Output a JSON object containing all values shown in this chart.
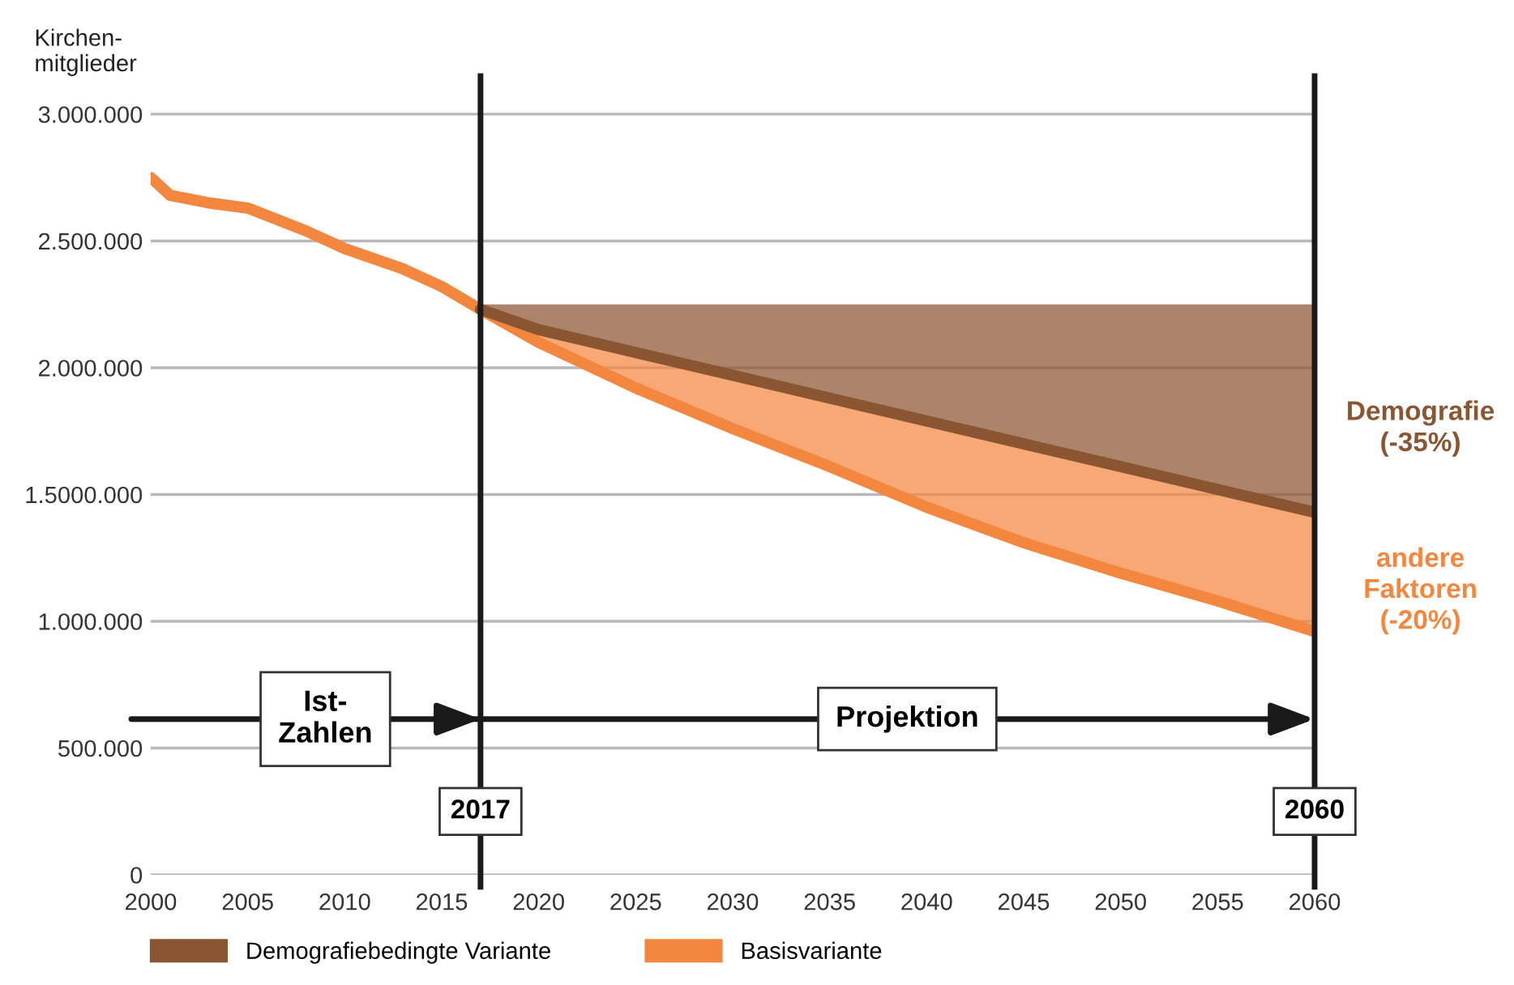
{
  "chart_data": {
    "type": "line",
    "ylabel": "Kirchen-\nmitglieder",
    "series": [
      {
        "name": "Demografiebedingte Variante",
        "color": "#8a5531",
        "x": [
          2017,
          2020,
          2025,
          2030,
          2035,
          2040,
          2045,
          2050,
          2055,
          2060
        ],
        "values": [
          2230000,
          2150000,
          2060000,
          1970000,
          1880000,
          1790000,
          1700000,
          1610000,
          1520000,
          1430000
        ],
        "lower": [
          2230000,
          2150000,
          2060000,
          1970000,
          1880000,
          1790000,
          1700000,
          1610000,
          1520000,
          1430000
        ],
        "upper": [
          2250000,
          2250000,
          2250000,
          2250000,
          2250000,
          2250000,
          2250000,
          2250000,
          2250000,
          2250000
        ]
      },
      {
        "name": "Basisvariante",
        "color": "#f4873f",
        "x": [
          2000,
          2001,
          2003,
          2005,
          2008,
          2010,
          2013,
          2015,
          2017,
          2020,
          2025,
          2030,
          2035,
          2040,
          2045,
          2050,
          2055,
          2060
        ],
        "values": [
          2750000,
          2680000,
          2650000,
          2630000,
          2540000,
          2470000,
          2390000,
          2320000,
          2230000,
          2100000,
          1920000,
          1760000,
          1610000,
          1450000,
          1310000,
          1190000,
          1080000,
          960000
        ],
        "lower": [
          null,
          null,
          null,
          null,
          null,
          null,
          null,
          null,
          2230000,
          2100000,
          1920000,
          1760000,
          1610000,
          1450000,
          1310000,
          1190000,
          1080000,
          960000
        ],
        "upper": [
          null,
          null,
          null,
          null,
          null,
          null,
          null,
          null,
          2230000,
          2150000,
          2060000,
          1970000,
          1880000,
          1790000,
          1700000,
          1610000,
          1520000,
          1430000
        ]
      }
    ],
    "xlim": [
      2000,
      2060
    ],
    "xticks": [
      2000,
      2005,
      2010,
      2015,
      2020,
      2025,
      2030,
      2035,
      2040,
      2045,
      2050,
      2055,
      2060
    ],
    "ylim": [
      0,
      3150000
    ],
    "yticks": [
      {
        "value": 0,
        "label": "0"
      },
      {
        "value": 500000,
        "label": "500.000"
      },
      {
        "value": 1000000,
        "label": "1.000.000"
      },
      {
        "value": 1500000,
        "label": "1.5000.000"
      },
      {
        "value": 2000000,
        "label": "2.000.000"
      },
      {
        "value": 2500000,
        "label": "2.500.000"
      },
      {
        "value": 3000000,
        "label": "3.000.000"
      }
    ],
    "ref_lines": [
      {
        "axis": "x",
        "value": 2017,
        "label": "2017",
        "color": "#1a1a1a"
      },
      {
        "axis": "x",
        "value": 2060,
        "label": "2060",
        "color": "#1a1a1a"
      }
    ],
    "annotations": [
      "Ist-\nZahlen",
      "Projektion",
      {
        "text": "Demografie\n(-35%)",
        "x": 2060,
        "y": 1760000
      },
      {
        "text": "andere\nFaktoren\n(-20%)",
        "x": 2060,
        "y": 1120000
      }
    ],
    "grid": "y",
    "legend": "bottom"
  }
}
